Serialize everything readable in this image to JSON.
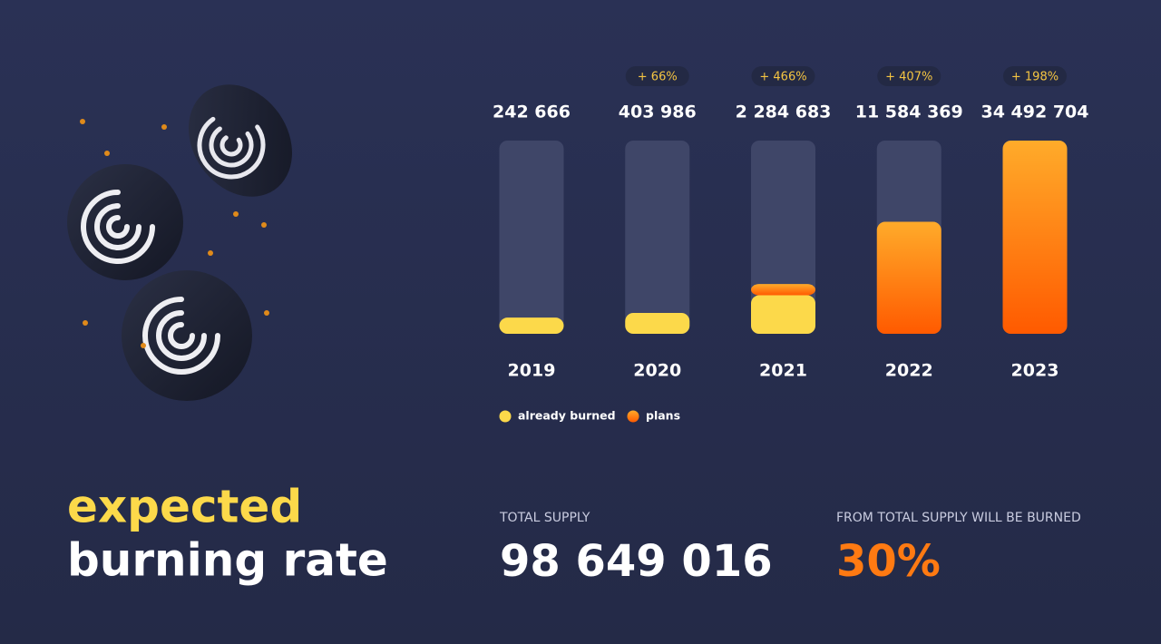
{
  "headline": [
    "expected",
    "burning rate"
  ],
  "stats": [
    {
      "label": "TOTAL SUPPLY",
      "value": "98 649 016"
    },
    {
      "label": "FROM TOTAL SUPPLY WILL BE BURNED",
      "value": "30%"
    }
  ],
  "chart_data": {
    "type": "stacked-bar",
    "categories": [
      "2019",
      "2020",
      "2021",
      "2022",
      "2023"
    ],
    "totals": [
      242666,
      403986,
      2284683,
      11584369,
      34492704
    ],
    "total_labels": [
      "242 666",
      "403 986",
      "2 284 683",
      "11 584 369",
      "34 492 704"
    ],
    "growth_labels": [
      null,
      "+ 66%",
      "+ 466%",
      "+ 407%",
      "+ 198%"
    ],
    "series": [
      {
        "name": "already burned",
        "color": "#fcd94a",
        "values": [
          242666,
          403986,
          1370810,
          null,
          null
        ]
      },
      {
        "name": "plans",
        "color": "#ff7a12",
        "values": [
          null,
          null,
          913873,
          11584369,
          34492704
        ]
      }
    ],
    "ylim": [
      0,
      34492704
    ],
    "yscale": "sqrt",
    "track_color": "#3f4668"
  }
}
